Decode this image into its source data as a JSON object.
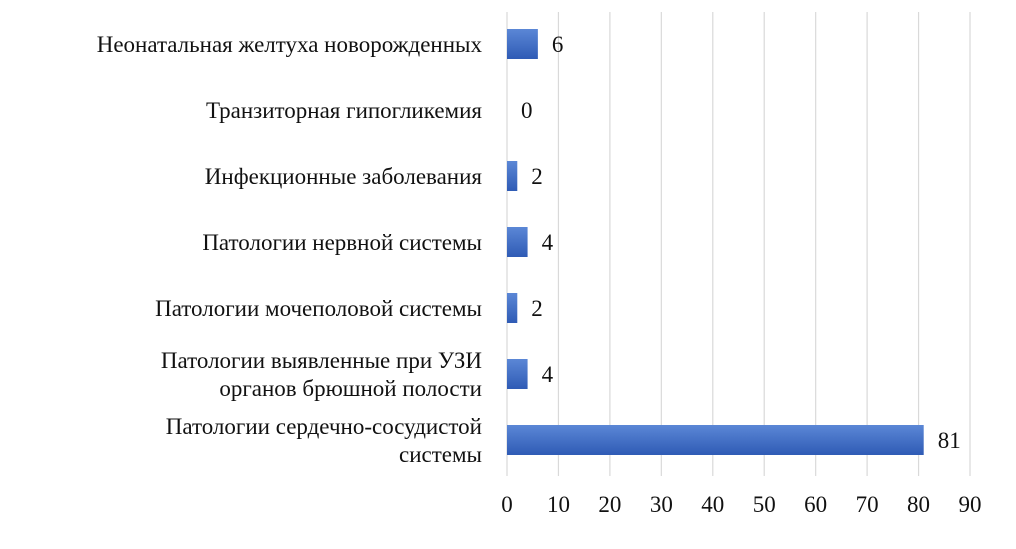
{
  "chart_data": {
    "type": "bar",
    "orientation": "horizontal",
    "categories": [
      [
        "Неонатальная желтуха новорожденных"
      ],
      [
        "Транзиторная гипогликемия"
      ],
      [
        "Инфекционные заболевания"
      ],
      [
        "Патологии нервной системы"
      ],
      [
        "Патологии мочеполовой системы"
      ],
      [
        "Патологии выявленные при УЗИ",
        "органов брюшной полости"
      ],
      [
        "Патологии сердечно-сосудистой",
        "системы"
      ]
    ],
    "values": [
      6,
      0,
      2,
      4,
      2,
      4,
      81
    ],
    "xlim": [
      0,
      90
    ],
    "x_ticks": [
      "0",
      "10",
      "20",
      "30",
      "40",
      "50",
      "60",
      "70",
      "80",
      "90"
    ],
    "grid": true,
    "legend": false,
    "title": "",
    "xlabel": "",
    "ylabel": "",
    "colors": {
      "bar_top": "#5b87d6",
      "bar_bottom": "#2f5bb5",
      "grid": "#d9d9d9"
    }
  }
}
